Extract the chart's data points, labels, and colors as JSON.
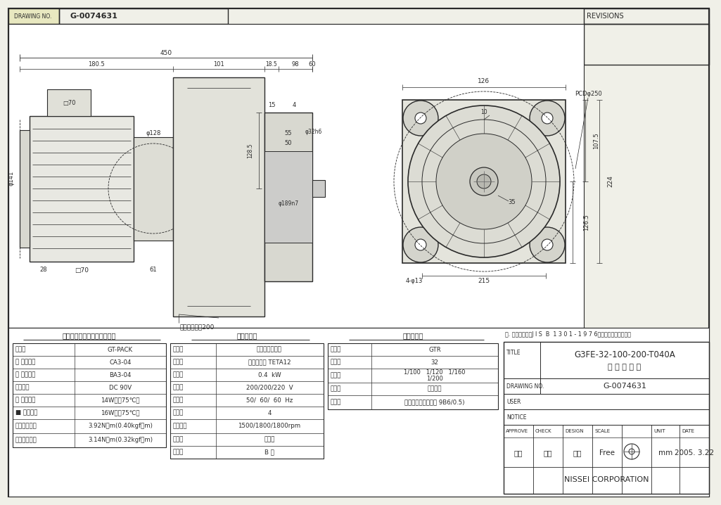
{
  "bg_color": "#f0f0e8",
  "white": "#ffffff",
  "line_color": "#2a2a2a",
  "draw_area_bg": "#ffffff",
  "header_bg": "#e8e8d0",
  "title_text": "G3FE-32-100-200-T040A",
  "subtitle_text": "外 形 寸 法 図",
  "drawing_no": "G-0074631",
  "company": "NISSEI CORPORATION",
  "note_text": "注. 出力軸キーはJ I S  B  1 3 0 1 - 1 9 7 6平行キーに依ります。",
  "header_drawing_no": "G-0074631",
  "revisions_label": "REVISIONS",
  "table1_title": "電磁クラッチ・ブレーキ仕様",
  "table1_rows": [
    [
      "名　称",
      "GT-PACK"
    ],
    [
      "型 クラッチ",
      "CA3-04"
    ],
    [
      "式 ブレーキ",
      "BA3-04"
    ],
    [
      "励磁電圧",
      "DC 90V"
    ],
    [
      "容 クラッチ",
      "14W（約75℃）"
    ],
    [
      "■ ブレーキ",
      "16W（約75℃）"
    ],
    [
      "静摩擦トルク",
      "3.92N・m(0.40kgf・m)"
    ],
    [
      "動摩擦トルク",
      "3.14N・m(0.32kgf・m)"
    ]
  ],
  "table2_title": "モータ仕様",
  "table2_rows": [
    [
      "名　称",
      "三相誘導電動機"
    ],
    [
      "型　式",
      "全閉外扇形 TETA12"
    ],
    [
      "出　力",
      "0.4  kW"
    ],
    [
      "電　圧",
      "200/200/220  V"
    ],
    [
      "周波数",
      "50/  60/  60  Hz"
    ],
    [
      "極　数",
      "4"
    ],
    [
      "回転速度",
      "1500/1800/1800rpm"
    ],
    [
      "定　格",
      "連　続"
    ],
    [
      "絶　縁",
      "B 級"
    ]
  ],
  "table3_title": "減速機仕様",
  "table3_rows": [
    [
      "名　称",
      "GTR"
    ],
    [
      "枠　番",
      "32"
    ],
    [
      "減速比_a",
      "1/100   1/120   1/160"
    ],
    [
      "減速比_b",
      "1/200"
    ],
    [
      "潤　滑",
      "グリース"
    ],
    [
      "塗　色",
      "グレー（マンセル値 9B6/0.5)"
    ]
  ],
  "title_block": {
    "approve": "海野",
    "check": "北村",
    "design": "鈴木",
    "scale": "Free",
    "unit": "mm",
    "date": "2005. 3.22",
    "approve_label": "APPROVE",
    "check_label": "CHECK",
    "design_label": "DESIGN",
    "scale_label": "SCALE",
    "unit_label": "UNIT",
    "date_label": "DATE",
    "title_label": "TITLE",
    "drawing_label": "DRAWING NO.",
    "user_label": "USER",
    "notice_label": "NOTICE"
  },
  "dim_450": "450",
  "dim_180_5": "180.5",
  "dim_101": "101",
  "dim_18_5": "18.5",
  "dim_98": "98",
  "dim_60": "60",
  "dim_15": "15",
  "dim_4": "4",
  "dim_55": "55",
  "dim_50": "50",
  "dim_128_5": "128.5",
  "dim_phi128": "φ128",
  "dim_phi141": "φ141",
  "dim_phi189n7": "φ189n7",
  "dim_phi32h6": "φ32h6",
  "dim_28": "28",
  "dim_sq70": "□70",
  "dim_61": "61",
  "lead_text": "リード線長さ200",
  "dim_126": "126",
  "dim_pcd250": "PCDφ250",
  "dim_107_5": "107.5",
  "dim_224": "224",
  "dim_126_5": "126.5",
  "dim_35": "35",
  "dim_10": "10",
  "dim_215": "215",
  "dim_4phi13": "4-φ13"
}
